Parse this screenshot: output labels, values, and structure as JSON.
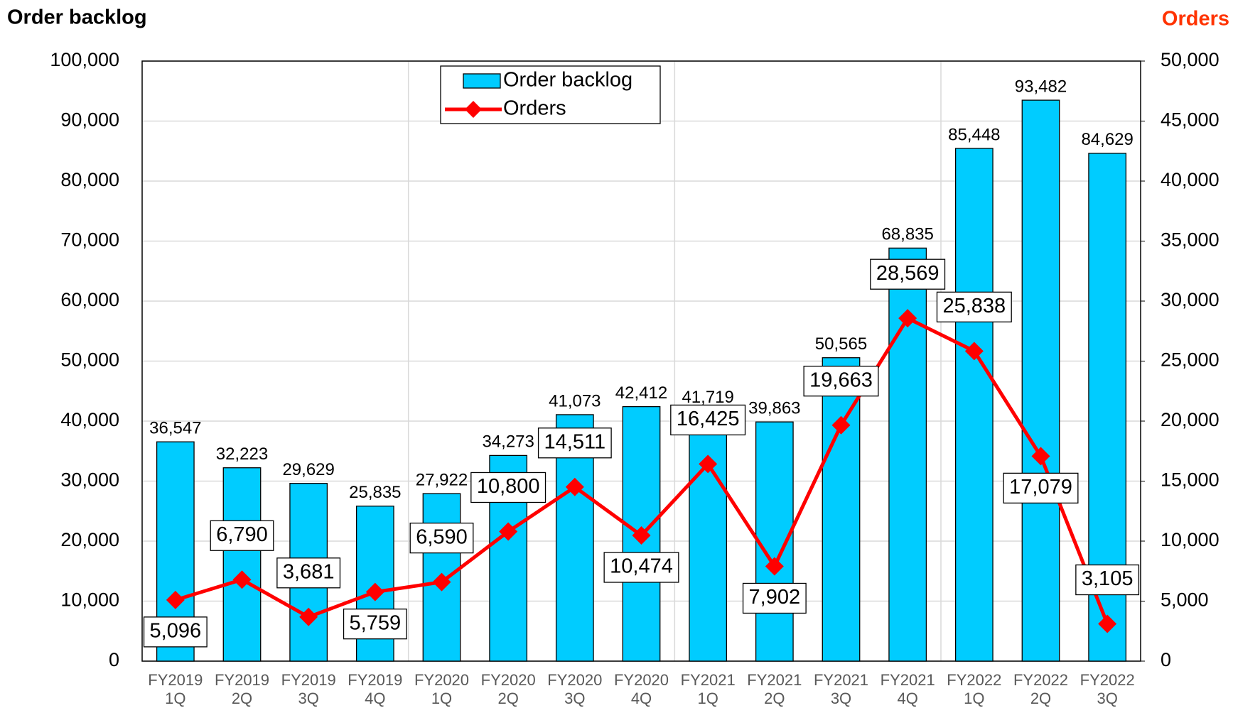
{
  "chart_data": {
    "type": "bar",
    "y_axis_title": "Order backlog",
    "y2_axis_title": "Orders",
    "categories": [
      [
        "FY2019",
        "1Q"
      ],
      [
        "FY2019",
        "2Q"
      ],
      [
        "FY2019",
        "3Q"
      ],
      [
        "FY2019",
        "4Q"
      ],
      [
        "FY2020",
        "1Q"
      ],
      [
        "FY2020",
        "2Q"
      ],
      [
        "FY2020",
        "3Q"
      ],
      [
        "FY2020",
        "4Q"
      ],
      [
        "FY2021",
        "1Q"
      ],
      [
        "FY2021",
        "2Q"
      ],
      [
        "FY2021",
        "3Q"
      ],
      [
        "FY2021",
        "4Q"
      ],
      [
        "FY2022",
        "1Q"
      ],
      [
        "FY2022",
        "2Q"
      ],
      [
        "FY2022",
        "3Q"
      ]
    ],
    "series": [
      {
        "name": "Order backlog",
        "type": "bar",
        "color": "#00ccff",
        "values": [
          36547,
          32223,
          29629,
          25835,
          27922,
          34273,
          41073,
          42412,
          41719,
          39863,
          50565,
          68835,
          85448,
          93482,
          84629
        ],
        "value_labels": [
          "36,547",
          "32,223",
          "29,629",
          "25,835",
          "27,922",
          "34,273",
          "41,073",
          "42,412",
          "41,719",
          "39,863",
          "50,565",
          "68,835",
          "85,448",
          "93,482",
          "84,629"
        ]
      },
      {
        "name": "Orders",
        "type": "line",
        "axis": "y2",
        "color": "#ff0000",
        "values": [
          5096,
          6790,
          3681,
          5759,
          6590,
          10800,
          14511,
          10474,
          16425,
          7902,
          19663,
          28569,
          25838,
          17079,
          3105
        ],
        "value_labels": [
          "5,096",
          "6,790",
          "3,681",
          "5,759",
          "6,590",
          "10,800",
          "14,511",
          "10,474",
          "16,425",
          "7,902",
          "19,663",
          "28,569",
          "25,838",
          "17,079",
          "3,105"
        ]
      }
    ],
    "ylim": [
      0,
      100000
    ],
    "yticks": [
      0,
      {
        "value": 10000,
        "label": "10,000"
      },
      {
        "value": 20000,
        "label": "20,000"
      },
      {
        "value": 30000,
        "label": "30,000"
      },
      {
        "value": 40000,
        "label": "40,000"
      },
      {
        "value": 50000,
        "label": "50,000"
      },
      {
        "value": 60000,
        "label": "60,000"
      },
      {
        "value": 70000,
        "label": "70,000"
      },
      {
        "value": 80000,
        "label": "80,000"
      },
      {
        "value": 90000,
        "label": "90,000"
      },
      {
        "value": 100000,
        "label": "100,000"
      }
    ],
    "y2lim": [
      0,
      50000
    ],
    "y2ticks": [
      0,
      {
        "value": 5000,
        "label": "5,000"
      },
      {
        "value": 10000,
        "label": "10,000"
      },
      {
        "value": 15000,
        "label": "15,000"
      },
      {
        "value": 20000,
        "label": "20,000"
      },
      {
        "value": 25000,
        "label": "25,000"
      },
      {
        "value": 30000,
        "label": "30,000"
      },
      {
        "value": 35000,
        "label": "35,000"
      },
      {
        "value": 40000,
        "label": "40,000"
      },
      {
        "value": 45000,
        "label": "45,000"
      },
      {
        "value": 50000,
        "label": "50,000"
      }
    ],
    "grid": true,
    "legend": "top"
  }
}
